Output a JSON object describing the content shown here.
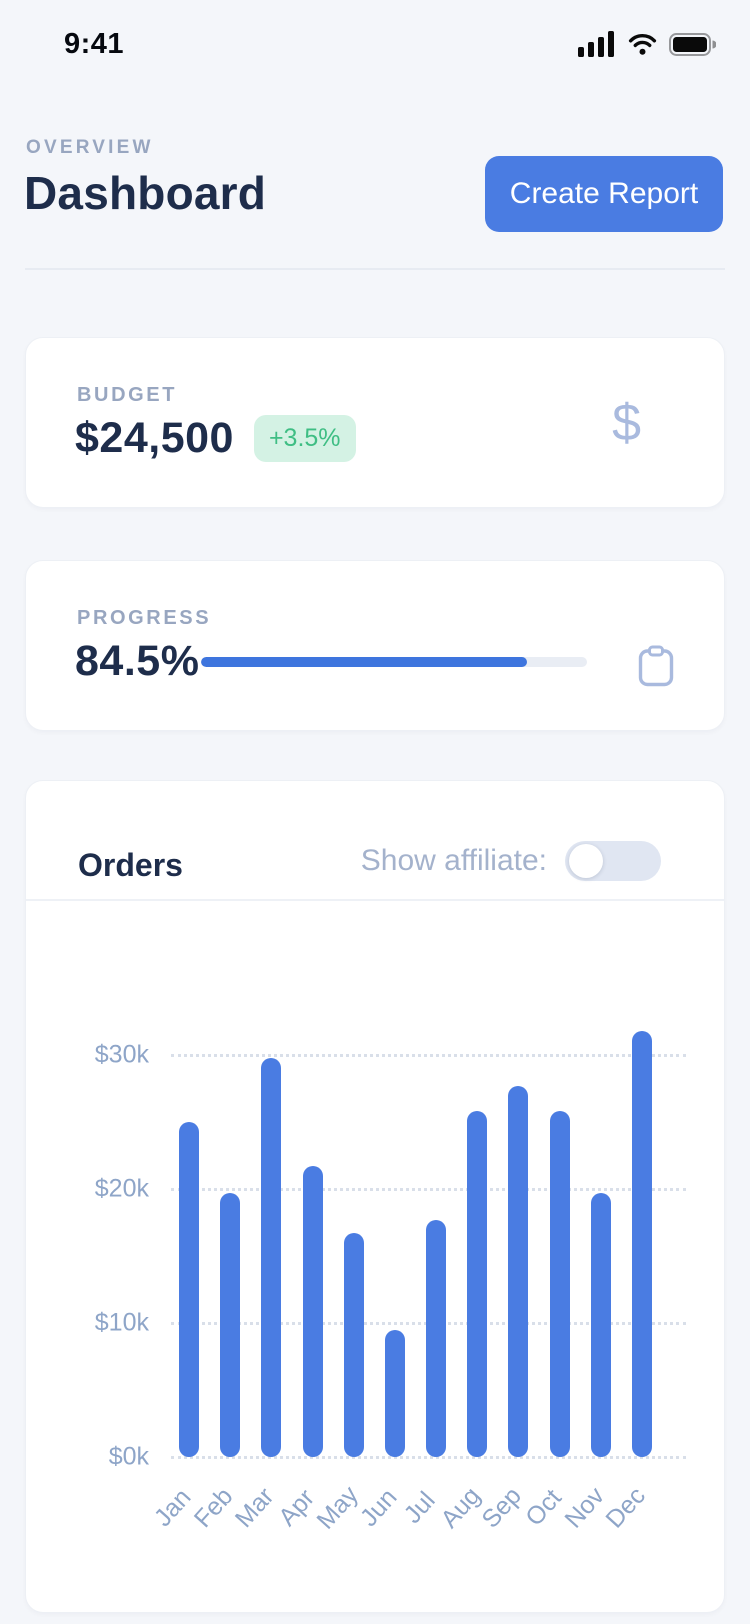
{
  "status_bar": {
    "time": "9:41"
  },
  "header": {
    "eyebrow": "OVERVIEW",
    "title": "Dashboard",
    "create_report_label": "Create Report"
  },
  "budget_card": {
    "label": "BUDGET",
    "value": "$24,500",
    "delta": "+3.5%",
    "icon_glyph": "$"
  },
  "progress_card": {
    "label": "PROGRESS",
    "value": "84.5%",
    "percent": 84.5
  },
  "orders_card": {
    "title": "Orders",
    "toggle_label": "Show affiliate:",
    "toggle_state": "off"
  },
  "icons": [
    "cellular-signal-icon",
    "wifi-icon",
    "battery-icon",
    "dollar-icon",
    "clipboard-icon"
  ],
  "colors": {
    "page-bg": "#f4f6fa",
    "accent-blue": "#4a7ce2",
    "progress-blue": "#3e75de",
    "navy": "#1e2d4b",
    "muted-label": "#98a6c0",
    "muted-text": "#a4b2cc",
    "axis-text": "#8ea5c8",
    "green-text": "#3fbe84",
    "green-bg": "#d4f2e4",
    "icon-periwinkle": "#a9bade",
    "toggle-bg": "#e0e6f2",
    "track": "#e9edf4",
    "gridline": "#d9dfe9"
  },
  "chart_data": {
    "type": "bar",
    "title": "Orders",
    "xlabel": "",
    "ylabel": "",
    "categories": [
      "Jan",
      "Feb",
      "Mar",
      "Apr",
      "May",
      "Jun",
      "Jul",
      "Aug",
      "Sep",
      "Oct",
      "Nov",
      "Dec"
    ],
    "values": [
      25.0,
      19.7,
      29.8,
      21.7,
      16.7,
      9.5,
      17.7,
      25.8,
      27.7,
      25.8,
      19.7,
      31.8
    ],
    "unit": "USD thousands",
    "yticks": [
      0,
      10,
      20,
      30
    ],
    "ytick_labels": [
      "$0k",
      "$10k",
      "$20k",
      "$30k"
    ],
    "ylim": [
      0,
      33.5
    ],
    "grid": "horizontal-dotted",
    "legend": "none",
    "bar_color": "#4a7ce2"
  }
}
